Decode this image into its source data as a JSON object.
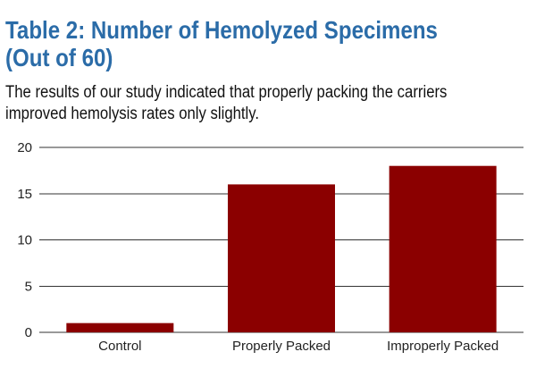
{
  "title_lines": [
    "Table 2: Number of Hemolyzed Specimens",
    "(Out of 60)"
  ],
  "subtitle_lines": [
    "The results of our study indicated that properly packing the carriers",
    "improved hemolysis rates only slightly."
  ],
  "colors": {
    "title": "#2b6ca8",
    "bar": "#8b0000",
    "grid": "#333333"
  },
  "chart_data": {
    "type": "bar",
    "title": "Table 2: Number of Hemolyzed Specimens (Out of 60)",
    "subtitle": "The results of our study indicated that properly packing the carriers improved hemolysis rates only slightly.",
    "xlabel": "",
    "ylabel": "",
    "categories": [
      "Control",
      "Properly Packed",
      "Improperly Packed"
    ],
    "values": [
      1,
      16,
      18
    ],
    "ylim": [
      0,
      20
    ],
    "yticks": [
      0,
      5,
      10,
      15,
      20
    ],
    "ytick_labels": [
      "0",
      "5",
      "10",
      "15",
      "20"
    ],
    "grid": true,
    "legend": "none"
  }
}
